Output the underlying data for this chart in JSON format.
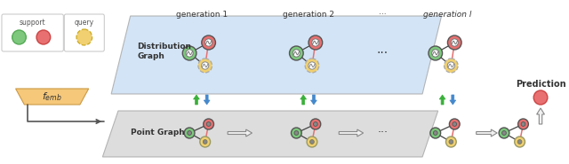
{
  "bg_color": "#ffffff",
  "dist_graph_color": "#cce0f5",
  "point_graph_color": "#d8d8d8",
  "green_node": "#7dc87d",
  "red_node": "#e87070",
  "yellow_node": "#f0d070",
  "arrow_green": "#3ab03a",
  "arrow_blue": "#4488cc",
  "femb_color": "#f5c87a",
  "gen_labels": [
    "generation 1",
    "generation 2",
    "···",
    "generation l"
  ],
  "graph_label_dist": "Distribution\nGraph",
  "graph_label_point": "Point Graph",
  "prediction_label": "Prediction",
  "support_label": "support",
  "query_label": "query"
}
